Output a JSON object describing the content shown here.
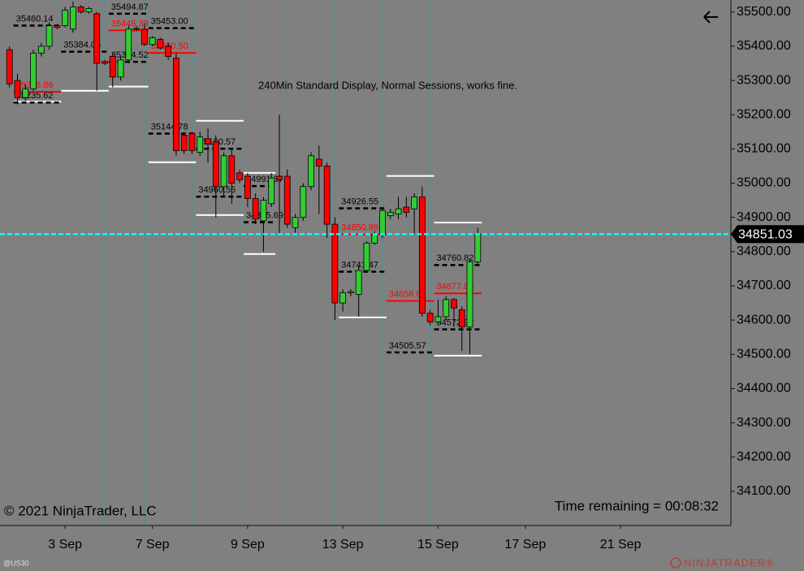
{
  "chart_data": {
    "type": "candlestick",
    "annotation": "240Min Standard Display, Normal Sessions, works fine.",
    "copyright": "© 2021 NinjaTrader, LLC",
    "time_remaining": "Time remaining = 00:08:32",
    "instrument": "@US30",
    "logo": "NINJATRADER®",
    "up_color": "#32cd32",
    "down_color": "#ff0000",
    "x": [
      0,
      1,
      2,
      3,
      4,
      5,
      6,
      7,
      8,
      9,
      10,
      11,
      12,
      13,
      14,
      15,
      16,
      17,
      18,
      19,
      20,
      21,
      22,
      23,
      24,
      25,
      26,
      27,
      28,
      29,
      30,
      31,
      32,
      33,
      34,
      35,
      36,
      37,
      38,
      39,
      40,
      41,
      42,
      43,
      44,
      45,
      46,
      47,
      48,
      49,
      50,
      51,
      52,
      53,
      54,
      55,
      56,
      57,
      58,
      59
    ],
    "open": [
      35390,
      35300,
      35250,
      35275,
      35380,
      35400,
      35460,
      35460,
      35450,
      35515,
      35500,
      35495,
      35355,
      35370,
      35310,
      35360,
      35450,
      35450,
      35405,
      35420,
      35400,
      35365,
      35140,
      35145,
      35090,
      35130,
      35120,
      34990,
      35080,
      35030,
      35020,
      34955,
      34890,
      34940,
      35020,
      35020,
      34870,
      34900,
      34990,
      35070,
      35050,
      34880,
      34650,
      34680,
      34675,
      34745,
      34825,
      34850,
      34905,
      34910,
      34930,
      34925,
      34960,
      34620,
      34595,
      34610,
      34660,
      34630,
      34580,
      34770
    ],
    "high": [
      35400,
      35320,
      35290,
      35390,
      35410,
      35470,
      35465,
      35515,
      35530,
      35520,
      35515,
      35500,
      35360,
      35380,
      35370,
      35460,
      35458,
      35465,
      35430,
      35425,
      35410,
      35380,
      35150,
      35150,
      35150,
      35160,
      35140,
      35090,
      35100,
      35040,
      35030,
      34970,
      34960,
      35030,
      35200,
      35040,
      34910,
      35000,
      35090,
      35110,
      35060,
      34900,
      34690,
      34690,
      34760,
      34830,
      34860,
      34930,
      34925,
      34960,
      34960,
      34970,
      34990,
      34630,
      34660,
      34670,
      34665,
      34640,
      34780,
      34870
    ],
    "low": [
      35280,
      35230,
      35240,
      35270,
      35370,
      35390,
      35450,
      35455,
      35440,
      35495,
      35495,
      35270,
      35345,
      35280,
      35300,
      35350,
      35445,
      35400,
      35400,
      35390,
      35360,
      35080,
      35085,
      35085,
      35080,
      35060,
      34900,
      34960,
      34940,
      35000,
      34930,
      34880,
      34800,
      34930,
      34850,
      34870,
      34855,
      34890,
      34980,
      34910,
      34840,
      34600,
      34625,
      34670,
      34610,
      34740,
      34820,
      34840,
      34895,
      34895,
      34900,
      34850,
      34610,
      34585,
      34590,
      34600,
      34580,
      34510,
      34500,
      34760
    ],
    "close": [
      35290,
      35250,
      35275,
      35380,
      35400,
      35460,
      35455,
      35505,
      35515,
      35500,
      35510,
      35350,
      35350,
      35310,
      35360,
      35450,
      35452,
      35405,
      35425,
      35395,
      35370,
      35095,
      35095,
      35095,
      35135,
      35115,
      34990,
      35080,
      35000,
      35010,
      34955,
      34895,
      34950,
      35015,
      35010,
      34880,
      34900,
      34990,
      35080,
      35050,
      34880,
      34650,
      34680,
      34683,
      34745,
      34825,
      34850,
      34920,
      34915,
      34925,
      34915,
      34960,
      34620,
      34595,
      34610,
      34660,
      34635,
      34580,
      34770,
      34851.03
    ],
    "last_price": 34851.03,
    "levels": [
      {
        "value": 35460.14,
        "color": "#000000",
        "x": [
          1,
          6
        ]
      },
      {
        "value": 35494.87,
        "color": "#000000",
        "x": [
          13,
          17
        ]
      },
      {
        "value": 35453.0,
        "label": "35453.00",
        "color": "#000000",
        "x": [
          18,
          23
        ]
      },
      {
        "value": 35384.06,
        "color": "#000000",
        "x": [
          7,
          12
        ]
      },
      {
        "value": 35354.52,
        "color": "#000000",
        "x": [
          13,
          17
        ]
      },
      {
        "value": 35235.62,
        "color": "#000000",
        "x": [
          1,
          6
        ]
      },
      {
        "value": 35144.78,
        "color": "#000000",
        "x": [
          18,
          23
        ]
      },
      {
        "value": 35100.57,
        "color": "#000000",
        "x": [
          24,
          29
        ]
      },
      {
        "value": 34960.55,
        "color": "#000000",
        "x": [
          24,
          29
        ]
      },
      {
        "value": 34991.37,
        "color": "#000000",
        "x": [
          30,
          33
        ]
      },
      {
        "value": 34885.69,
        "color": "#000000",
        "x": [
          30,
          33
        ]
      },
      {
        "value": 34926.55,
        "color": "#000000",
        "x": [
          42,
          47
        ]
      },
      {
        "value": 34741.47,
        "color": "#000000",
        "x": [
          42,
          47
        ]
      },
      {
        "value": 34760.82,
        "color": "#000000",
        "x": [
          54,
          59
        ]
      },
      {
        "value": 34505.57,
        "color": "#000000",
        "x": [
          48,
          53
        ]
      },
      {
        "value": 34572.92,
        "color": "#000000",
        "x": [
          54,
          59
        ]
      },
      {
        "value": 35266.86,
        "color": "#ff0000",
        "x": [
          1,
          6
        ]
      },
      {
        "value": 35446.39,
        "color": "#ff0000",
        "x": [
          13,
          17
        ]
      },
      {
        "value": 35380.5,
        "label": "35380.50",
        "color": "#ff0000",
        "x": [
          18,
          23
        ]
      },
      {
        "value": 34850.89,
        "color": "#ff0000",
        "x": [
          42,
          47
        ]
      },
      {
        "value": 34656.07,
        "color": "#ff0000",
        "x": [
          48,
          53
        ]
      },
      {
        "value": 34677.89,
        "color": "#ff0000",
        "x": [
          54,
          59
        ]
      }
    ],
    "range_lines": [
      {
        "value": 35238,
        "x": [
          1,
          6
        ]
      },
      {
        "value": 35270,
        "x": [
          7,
          12
        ]
      },
      {
        "value": 35282,
        "x": [
          13,
          17
        ]
      },
      {
        "value": 35061,
        "x": [
          18,
          23
        ]
      },
      {
        "value": 35182,
        "x": [
          24,
          29
        ]
      },
      {
        "value": 34907,
        "x": [
          24,
          29
        ]
      },
      {
        "value": 35030,
        "x": [
          30,
          33
        ]
      },
      {
        "value": 34793,
        "x": [
          30,
          33
        ]
      },
      {
        "value": 34608,
        "x": [
          42,
          47
        ]
      },
      {
        "value": 35021,
        "x": [
          48,
          53
        ]
      },
      {
        "value": 34885,
        "x": [
          54,
          59
        ]
      },
      {
        "value": 34496,
        "x": [
          54,
          59
        ]
      }
    ],
    "xlim": [
      -1.2,
      90.9
    ],
    "xticks": [
      {
        "value": 7,
        "label": "3 Sep"
      },
      {
        "value": 18,
        "label": "7 Sep"
      },
      {
        "value": 30,
        "label": "9 Sep"
      },
      {
        "value": 42,
        "label": "13 Sep"
      },
      {
        "value": 54,
        "label": "15 Sep"
      },
      {
        "value": 65,
        "label": "17 Sep"
      },
      {
        "value": 77,
        "label": "21 Sep"
      }
    ],
    "ylim": [
      34000,
      35535
    ],
    "yticks": [
      {
        "value": 34100,
        "label": "34100.00"
      },
      {
        "value": 34200,
        "label": "34200.00"
      },
      {
        "value": 34300,
        "label": "34300.00"
      },
      {
        "value": 34400,
        "label": "34400.00"
      },
      {
        "value": 34500,
        "label": "34500.00"
      },
      {
        "value": 34600,
        "label": "34600.00"
      },
      {
        "value": 34700,
        "label": "34700.00"
      },
      {
        "value": 34800,
        "label": "34800.00"
      },
      {
        "value": 34900,
        "label": "34900.00"
      },
      {
        "value": 35000,
        "label": "35000.00"
      },
      {
        "value": 35100,
        "label": "35100.00"
      },
      {
        "value": 35200,
        "label": "35200.00"
      },
      {
        "value": 35300,
        "label": "35300.00"
      },
      {
        "value": 35400,
        "label": "35400.00"
      },
      {
        "value": 35500,
        "label": "35500.00"
      }
    ]
  }
}
